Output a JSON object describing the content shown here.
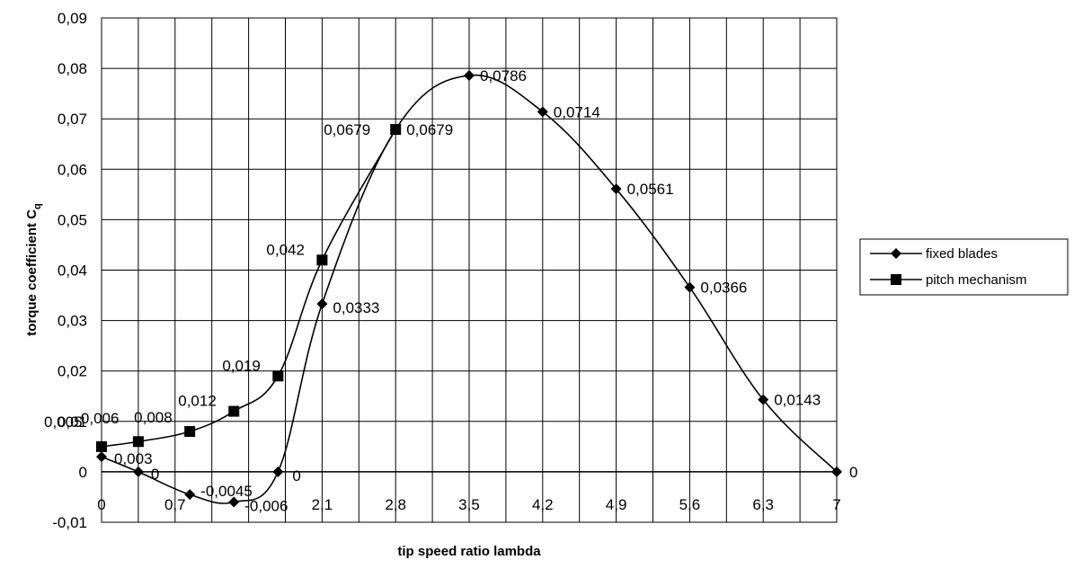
{
  "chart_data": {
    "type": "line",
    "xlabel": "tip speed ratio lambda",
    "ylabel": "torque coefficient C",
    "ylabel_subscript": "q",
    "xlim": [
      0,
      7
    ],
    "ylim": [
      -0.01,
      0.09
    ],
    "x_ticks": [
      0,
      0.35,
      0.7,
      1.05,
      1.4,
      1.75,
      2.1,
      2.45,
      2.8,
      3.15,
      3.5,
      3.85,
      4.2,
      4.55,
      4.9,
      5.25,
      5.6,
      5.95,
      6.3,
      6.65,
      7
    ],
    "x_tick_labels": [
      "0",
      "",
      "0,7",
      "",
      "",
      "",
      "2,1",
      "",
      "2,8",
      "",
      "3,5",
      "",
      "4,2",
      "",
      "4,9",
      "",
      "5,6",
      "",
      "6,3",
      "",
      "7"
    ],
    "y_ticks": [
      -0.01,
      0,
      0.01,
      0.02,
      0.03,
      0.04,
      0.05,
      0.06,
      0.07,
      0.08,
      0.09
    ],
    "y_tick_labels": [
      "-0,01",
      "0",
      "0,01",
      "0,02",
      "0,03",
      "0,04",
      "0,05",
      "0,06",
      "0,07",
      "0,08",
      "0,09"
    ],
    "grid": true,
    "legend_position": "right",
    "series": [
      {
        "name": "fixed blades",
        "marker": "diamond",
        "x": [
          0,
          0.35,
          0.84,
          1.26,
          1.68,
          2.1,
          2.8,
          3.5,
          4.2,
          4.9,
          5.6,
          6.3,
          7.0
        ],
        "y": [
          0.003,
          0,
          -0.0045,
          -0.006,
          0,
          0.0333,
          0.0679,
          0.0786,
          0.0714,
          0.0561,
          0.0366,
          0.0143,
          0
        ],
        "labels": [
          "0,003",
          "0",
          "-0,0045",
          "-0,006",
          "0",
          "0,0333",
          "0,0679",
          "0,0786",
          "0,0714",
          "0,0561",
          "0,0366",
          "0,0143",
          "0"
        ]
      },
      {
        "name": "pitch mechanism",
        "marker": "square",
        "x": [
          0,
          0.35,
          0.84,
          1.26,
          1.68,
          2.1,
          2.8
        ],
        "y": [
          0.005,
          0.006,
          0.008,
          0.012,
          0.019,
          0.042,
          0.0679
        ],
        "labels": [
          "0,005",
          "0,006",
          "0,008",
          "0,012",
          "0,019",
          "0,042",
          "0,0679"
        ]
      }
    ]
  }
}
